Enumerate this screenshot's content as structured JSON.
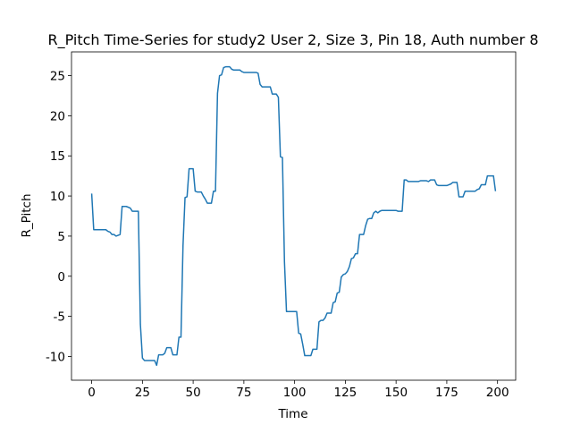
{
  "chart_data": {
    "type": "line",
    "title": "R_Pitch Time-Series for study2 User 2, Size 3, Pin 18, Auth number 8",
    "x_label": "Time",
    "y_label": "R_Pitch",
    "color": "#1f77b4",
    "xlim": [
      -9.95,
      208.95
    ],
    "ylim": [
      -12.96,
      27.96
    ],
    "xticks": [
      0,
      25,
      50,
      75,
      100,
      125,
      150,
      175,
      200
    ],
    "yticks": [
      -10,
      -5,
      0,
      5,
      10,
      15,
      20,
      25
    ],
    "grid": false,
    "x": [
      0,
      1,
      2,
      3,
      4,
      5,
      6,
      7,
      8,
      9,
      10,
      11,
      12,
      13,
      14,
      15,
      16,
      17,
      18,
      19,
      20,
      21,
      22,
      23,
      24,
      25,
      26,
      27,
      28,
      29,
      30,
      31,
      32,
      33,
      34,
      35,
      36,
      37,
      38,
      39,
      40,
      41,
      42,
      43,
      44,
      45,
      46,
      47,
      48,
      49,
      50,
      51,
      52,
      53,
      54,
      55,
      56,
      57,
      58,
      59,
      60,
      61,
      62,
      63,
      64,
      65,
      66,
      67,
      68,
      69,
      70,
      71,
      72,
      73,
      74,
      75,
      76,
      77,
      78,
      79,
      80,
      81,
      82,
      83,
      84,
      85,
      86,
      87,
      88,
      89,
      90,
      91,
      92,
      93,
      94,
      95,
      96,
      97,
      98,
      99,
      100,
      101,
      102,
      103,
      104,
      105,
      106,
      107,
      108,
      109,
      110,
      111,
      112,
      113,
      114,
      115,
      116,
      117,
      118,
      119,
      120,
      121,
      122,
      123,
      124,
      125,
      126,
      127,
      128,
      129,
      130,
      131,
      132,
      133,
      134,
      135,
      136,
      137,
      138,
      139,
      140,
      141,
      142,
      143,
      144,
      145,
      146,
      147,
      148,
      149,
      150,
      151,
      152,
      153,
      154,
      155,
      156,
      157,
      158,
      159,
      160,
      161,
      162,
      163,
      164,
      165,
      166,
      167,
      168,
      169,
      170,
      171,
      172,
      173,
      174,
      175,
      176,
      177,
      178,
      179,
      180,
      181,
      182,
      183,
      184,
      185,
      186,
      187,
      188,
      189,
      190,
      191,
      192,
      193,
      194,
      195,
      196,
      197,
      198,
      199
    ],
    "values": [
      10.3,
      5.8,
      5.8,
      5.8,
      5.8,
      5.8,
      5.8,
      5.8,
      5.6,
      5.5,
      5.2,
      5.2,
      5.0,
      5.1,
      5.2,
      8.7,
      8.7,
      8.7,
      8.6,
      8.5,
      8.1,
      8.1,
      8.1,
      8.1,
      -6.0,
      -10.2,
      -10.5,
      -10.5,
      -10.5,
      -10.5,
      -10.5,
      -10.5,
      -11.1,
      -9.8,
      -9.8,
      -9.8,
      -9.6,
      -8.9,
      -8.9,
      -8.9,
      -9.8,
      -9.8,
      -9.8,
      -7.6,
      -7.6,
      3.8,
      9.8,
      9.9,
      13.4,
      13.4,
      13.4,
      10.6,
      10.5,
      10.5,
      10.5,
      10.0,
      9.6,
      9.1,
      9.1,
      9.1,
      10.6,
      10.6,
      22.8,
      25.0,
      25.1,
      26.0,
      26.1,
      26.1,
      26.1,
      25.8,
      25.7,
      25.7,
      25.7,
      25.7,
      25.5,
      25.4,
      25.4,
      25.4,
      25.4,
      25.4,
      25.4,
      25.4,
      25.3,
      23.9,
      23.6,
      23.6,
      23.6,
      23.6,
      23.6,
      22.7,
      22.7,
      22.7,
      22.3,
      14.9,
      14.8,
      1.8,
      -4.4,
      -4.4,
      -4.4,
      -4.4,
      -4.4,
      -4.4,
      -7.1,
      -7.2,
      -8.5,
      -9.9,
      -9.9,
      -9.9,
      -9.9,
      -9.1,
      -9.1,
      -9.1,
      -5.7,
      -5.5,
      -5.5,
      -5.2,
      -4.6,
      -4.6,
      -4.6,
      -3.3,
      -3.2,
      -2.1,
      -2.0,
      -0.1,
      0.2,
      0.3,
      0.6,
      1.2,
      2.2,
      2.3,
      2.8,
      2.8,
      5.2,
      5.2,
      5.2,
      6.3,
      7.1,
      7.2,
      7.2,
      7.9,
      8.1,
      7.9,
      8.1,
      8.2,
      8.2,
      8.2,
      8.2,
      8.2,
      8.2,
      8.2,
      8.2,
      8.1,
      8.1,
      8.1,
      12.0,
      12.0,
      11.8,
      11.8,
      11.8,
      11.8,
      11.8,
      11.8,
      11.9,
      11.9,
      11.9,
      11.9,
      11.8,
      12.0,
      12.0,
      12.0,
      11.4,
      11.3,
      11.3,
      11.3,
      11.3,
      11.3,
      11.4,
      11.5,
      11.7,
      11.7,
      11.7,
      9.9,
      9.9,
      9.9,
      10.6,
      10.6,
      10.6,
      10.6,
      10.6,
      10.6,
      10.8,
      10.9,
      11.4,
      11.4,
      11.4,
      12.5,
      12.5,
      12.5,
      12.5,
      10.6
    ]
  }
}
